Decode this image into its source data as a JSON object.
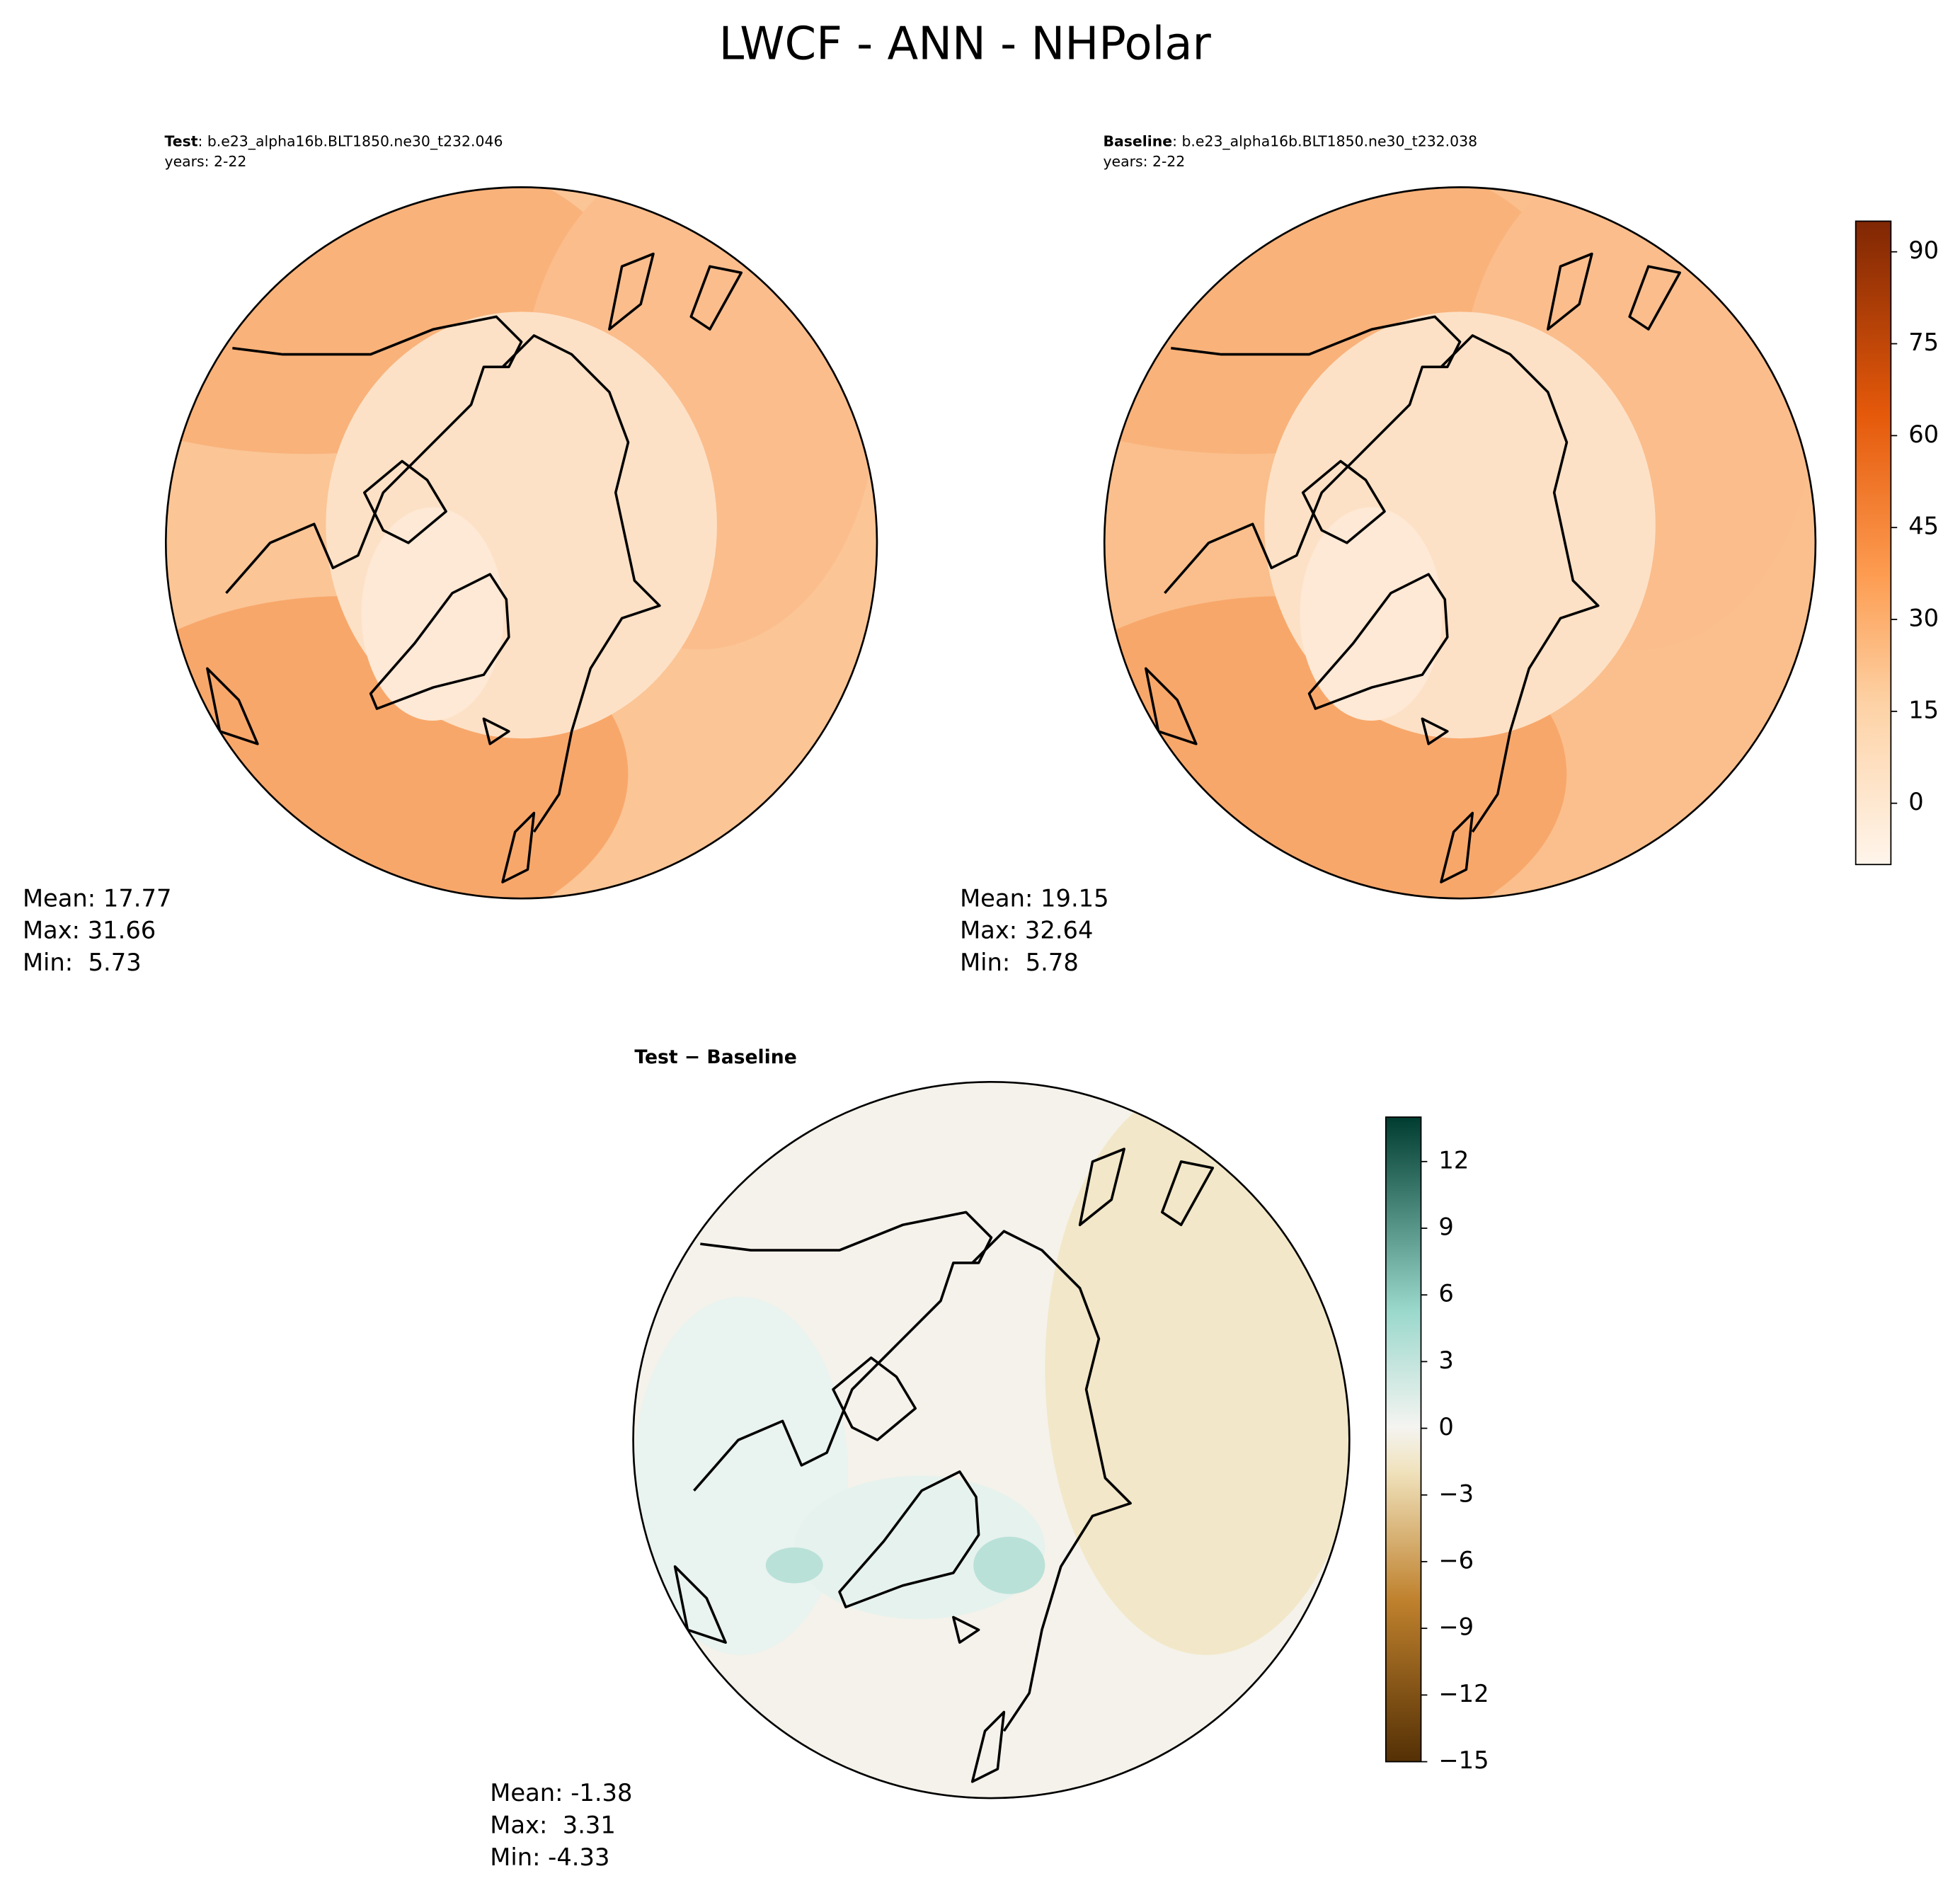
{
  "title": "LWCF - ANN - NHPolar",
  "panels": [
    {
      "label": "Test",
      "case": ": b.e23_alpha16b.BLT1850.ne30_t232.046",
      "years": "years: 2-22",
      "stats": [
        "Mean: 17.77",
        "Max: 31.66",
        "Min:  5.73"
      ]
    },
    {
      "label": "Baseline",
      "case": ": b.e23_alpha16b.BLT1850.ne30_t232.038",
      "years": "years: 2-22",
      "stats": [
        "Mean: 19.15",
        "Max: 32.64",
        "Min:  5.78"
      ]
    }
  ],
  "difference": {
    "title": "Test − Baseline",
    "stats": [
      "Mean: -1.38",
      "Max:  3.31",
      "Min: -4.33"
    ]
  },
  "colorbars": [
    {
      "ylim": [
        -10,
        95
      ],
      "yticks": [
        0,
        15,
        30,
        45,
        60,
        75,
        90
      ]
    },
    {
      "ylim": [
        -15,
        14
      ],
      "yticks": [
        12,
        9,
        6,
        3,
        0,
        {
          "value": -3,
          "label": "−3"
        },
        {
          "value": -6,
          "label": "−6"
        },
        {
          "value": -9,
          "label": "−9"
        },
        {
          "value": -12,
          "label": "−12"
        },
        {
          "value": -15,
          "label": "−15"
        }
      ]
    }
  ]
}
